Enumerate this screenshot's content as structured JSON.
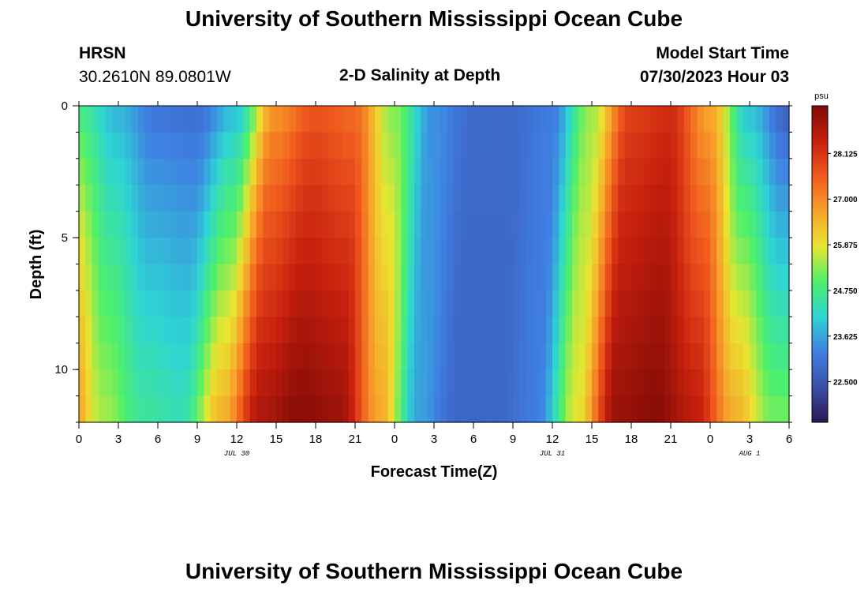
{
  "page": {
    "title_top": "University of Southern Mississippi Ocean Cube",
    "title_bottom": "University of Southern Mississippi Ocean Cube",
    "station": "HRSN",
    "coords": "30.2610N  89.0801W",
    "plot_title": "2-D Salinity at Depth",
    "model_start_label": "Model Start Time",
    "model_start_value": "07/30/2023 Hour 03"
  },
  "chart_data": {
    "type": "heatmap",
    "title": "2-D Salinity at Depth",
    "xlabel": "Forecast Time(Z)",
    "ylabel": "Depth (ft)",
    "x_hours_range": [
      0,
      54
    ],
    "y_range_ft": [
      0,
      12
    ],
    "x_tick_labels": [
      "0",
      "3",
      "6",
      "9",
      "12",
      "15",
      "18",
      "21",
      "0",
      "3",
      "6",
      "9",
      "12",
      "15",
      "18",
      "21",
      "0",
      "3",
      "6"
    ],
    "y_tick_labels": [
      "0",
      "5",
      "10"
    ],
    "y_tick_values": [
      0,
      5,
      10
    ],
    "date_labels": [
      {
        "text": "JUL 30",
        "hour": 12
      },
      {
        "text": "JUL 31",
        "hour": 36
      },
      {
        "text": "AUG 1",
        "hour": 51
      }
    ],
    "colorbar": {
      "unit": "psu",
      "range": [
        21.5,
        29.3
      ],
      "tick_labels": [
        "22.500",
        "23.625",
        "24.750",
        "25.875",
        "27.000",
        "28.125"
      ],
      "tick_values": [
        22.5,
        23.625,
        24.75,
        25.875,
        27.0,
        28.125
      ],
      "colors": [
        "#2b1650",
        "#3b4fa8",
        "#3f7fe2",
        "#2ed5d4",
        "#4ef06a",
        "#e8e530",
        "#f8a22a",
        "#f05a1e",
        "#c7200e",
        "#7e0a05"
      ]
    },
    "profile": {
      "hours": [
        0,
        3,
        6,
        9,
        12,
        15,
        18,
        21,
        24,
        27,
        30,
        33,
        36,
        39,
        42,
        45,
        48,
        51,
        54
      ],
      "surface_psu": [
        24.6,
        23.7,
        23.0,
        22.9,
        23.8,
        26.8,
        27.6,
        27.3,
        25.2,
        23.4,
        22.9,
        22.9,
        23.2,
        25.4,
        27.9,
        28.2,
        26.6,
        23.8,
        22.6
      ],
      "bottom_psu": [
        27.5,
        25.5,
        24.6,
        24.4,
        26.5,
        28.8,
        29.2,
        29.0,
        26.7,
        23.6,
        22.8,
        22.8,
        23.2,
        25.8,
        29.0,
        29.2,
        28.6,
        26.6,
        25.2
      ]
    }
  }
}
